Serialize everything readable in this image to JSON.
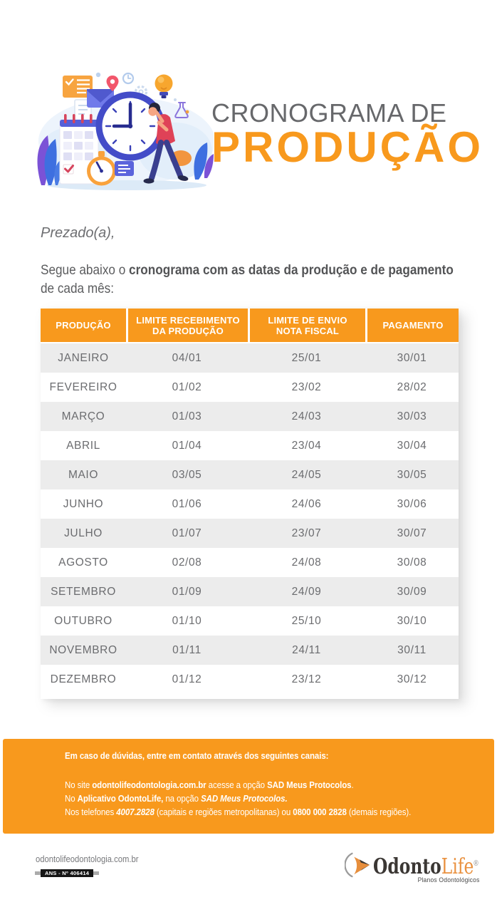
{
  "hero": {
    "title_line1": "CRONOGRAMA DE",
    "title_line2": "PRODUÇÃO"
  },
  "letter": {
    "greeting": "Prezado(a),",
    "intro_normal1": "Segue abaixo o ",
    "intro_bold": "cronograma com as datas da produção e de pagamento",
    "intro_normal2": "de cada mês:"
  },
  "table": {
    "headers": [
      [
        "PRODUÇÃO"
      ],
      [
        "LIMITE RECEBIMENTO",
        "DA PRODUÇÃO"
      ],
      [
        "LIMITE DE ENVIO",
        "NOTA FISCAL"
      ],
      [
        "PAGAMENTO"
      ]
    ],
    "rows": [
      [
        "JANEIRO",
        "04/01",
        "25/01",
        "30/01"
      ],
      [
        "FEVEREIRO",
        "01/02",
        "23/02",
        "28/02"
      ],
      [
        "MARÇO",
        "01/03",
        "24/03",
        "30/03"
      ],
      [
        "ABRIL",
        "01/04",
        "23/04",
        "30/04"
      ],
      [
        "MAIO",
        "03/05",
        "24/05",
        "30/05"
      ],
      [
        "JUNHO",
        "01/06",
        "24/06",
        "30/06"
      ],
      [
        "JULHO",
        "01/07",
        "23/07",
        "30/07"
      ],
      [
        "AGOSTO",
        "02/08",
        "24/08",
        "30/08"
      ],
      [
        "SETEMBRO",
        "01/09",
        "24/09",
        "30/09"
      ],
      [
        "OUTUBRO",
        "01/10",
        "25/10",
        "30/10"
      ],
      [
        "NOVEMBRO",
        "01/11",
        "24/11",
        "30/11"
      ],
      [
        "DEZEMBRO",
        "01/12",
        "23/12",
        "30/12"
      ]
    ]
  },
  "contact_box": {
    "heading": "Em caso de dúvidas, entre em contato através dos seguintes canais:",
    "site_n1": "No site ",
    "site_b1": "odontolifeodontologia.com.br",
    "site_n2": " acesse a opção ",
    "site_b2": "SAD Meus Protocolos",
    "site_n3": ".",
    "app_n1": "No ",
    "app_b1": "Aplicativo OdontoLife,",
    "app_n2": " na opção ",
    "app_bi": "SAD Meus Protocolos.",
    "phone_n1": "Nos telefones ",
    "phone_b1": "4007.2828",
    "phone_n2": " (capitais e regiões metropolitanas) ou ",
    "phone_b2": "0800 000 2828",
    "phone_n3": " (demais regiões)."
  },
  "bottom": {
    "website": "odontolifeodontologia.com.br",
    "ans_label": "ANS - Nº 406414",
    "logo_odonto": "Odonto",
    "logo_life": "Life",
    "logo_reg": "®",
    "logo_tagline": "Planos Odontológicos"
  },
  "colors": {
    "accent_orange": "#F8991D",
    "title_gray": "#67686B",
    "body_text_gray": "#6D6E71",
    "table_row_gray": "#ECECEC",
    "contact_text": "#FFFFFF",
    "logo_dark": "#3B3734",
    "logo_orange": "#E9913F",
    "ans_badge_black": "#161616"
  }
}
